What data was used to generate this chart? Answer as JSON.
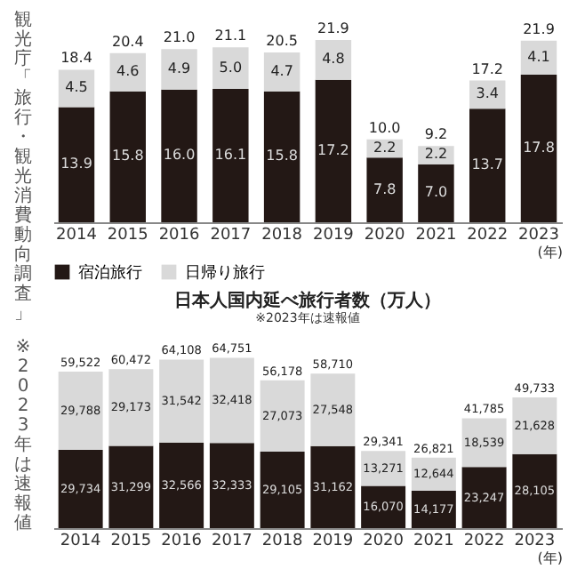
{
  "chart_data": [
    {
      "type": "bar",
      "stacked": true,
      "categories": [
        "2014",
        "2015",
        "2016",
        "2017",
        "2018",
        "2019",
        "2020",
        "2021",
        "2022",
        "2023"
      ],
      "xlabel": "(年)",
      "tick_labels": "x",
      "legend": "bottom",
      "annotations": [
        "観光庁「旅行・観光消費動向調査」",
        "※2023年は速報値"
      ],
      "series": [
        {
          "name": "宿泊旅行",
          "color": "#231815",
          "values": [
            13.9,
            15.8,
            16.0,
            16.1,
            15.8,
            17.2,
            7.8,
            7.0,
            13.7,
            17.8
          ],
          "value_labels": [
            "13.9",
            "15.8",
            "16.0",
            "16.1",
            "15.8",
            "17.2",
            "7.8",
            "7.0",
            "13.7",
            "17.8"
          ]
        },
        {
          "name": "日帰り旅行",
          "color": "#d9d9d9",
          "values": [
            4.5,
            4.6,
            4.9,
            5.0,
            4.7,
            4.8,
            2.2,
            2.2,
            3.4,
            4.1
          ],
          "value_labels": [
            "4.5",
            "4.6",
            "4.9",
            "5.0",
            "4.7",
            "4.8",
            "2.2",
            "2.2",
            "3.4",
            "4.1"
          ]
        }
      ],
      "totals": [
        "18.4",
        "20.4",
        "21.0",
        "21.1",
        "20.5",
        "21.9",
        "10.0",
        "9.2",
        "17.2",
        "21.9"
      ]
    },
    {
      "type": "bar",
      "stacked": true,
      "title": "日本人国内延べ旅行者数（万人）",
      "subtitle": "※2023年は速報値",
      "categories": [
        "2014",
        "2015",
        "2016",
        "2017",
        "2018",
        "2019",
        "2020",
        "2021",
        "2022",
        "2023"
      ],
      "xlabel": "(年)",
      "tick_labels": "x",
      "series": [
        {
          "color": "#231815",
          "values": [
            29734,
            31299,
            32566,
            32333,
            29105,
            31162,
            16070,
            14177,
            23247,
            28105
          ],
          "value_labels": [
            "29,734",
            "31,299",
            "32,566",
            "32,333",
            "29,105",
            "31,162",
            "16,070",
            "14,177",
            "23,247",
            "28,105"
          ]
        },
        {
          "color": "#d9d9d9",
          "values": [
            29788,
            29173,
            31542,
            32418,
            27073,
            27548,
            13271,
            12644,
            18539,
            21628
          ],
          "value_labels": [
            "29,788",
            "29,173",
            "31,542",
            "32,418",
            "27,073",
            "27,548",
            "13,271",
            "12,644",
            "18,539",
            "21,628"
          ]
        }
      ],
      "totals": [
        "59,522",
        "60,472",
        "64,108",
        "64,751",
        "56,178",
        "58,710",
        "29,341",
        "26,821",
        "41,785",
        "49,733"
      ]
    }
  ]
}
